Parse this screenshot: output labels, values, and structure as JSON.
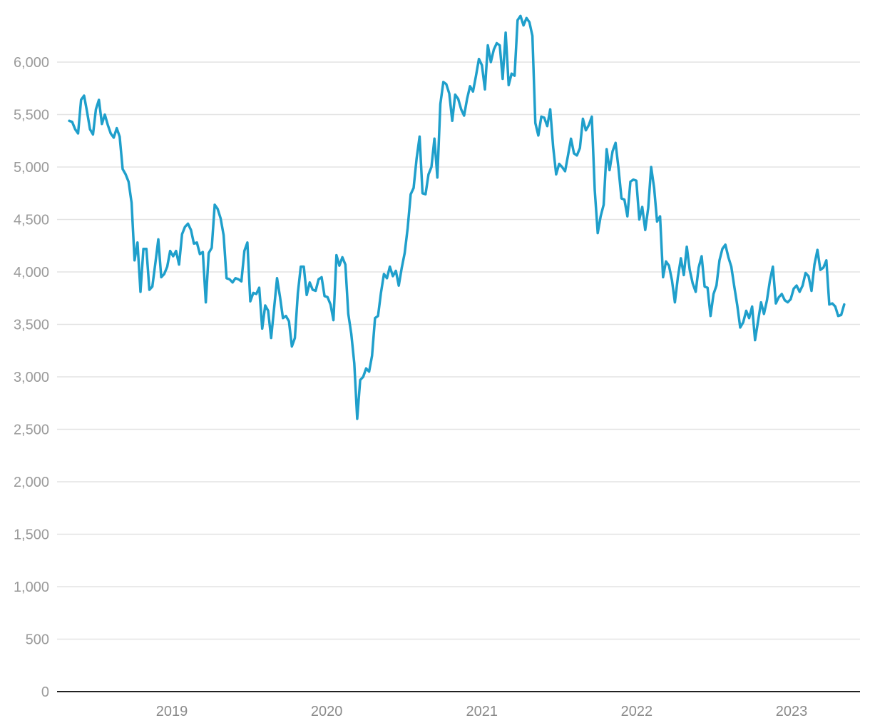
{
  "chart_data": {
    "type": "line",
    "title": "",
    "xlabel": "",
    "ylabel": "",
    "ylim": [
      0,
      6400
    ],
    "xlim": [
      "2018-05-01",
      "2023-05-31"
    ],
    "grid": "horizontal",
    "line_color": "#1f9fcb",
    "y_ticks": [
      {
        "value": 0,
        "label": "0"
      },
      {
        "value": 500,
        "label": "500"
      },
      {
        "value": 1000,
        "label": "1,000"
      },
      {
        "value": 1500,
        "label": "1,500"
      },
      {
        "value": 2000,
        "label": "2,000"
      },
      {
        "value": 2500,
        "label": "2,500"
      },
      {
        "value": 3000,
        "label": "3,000"
      },
      {
        "value": 3500,
        "label": "3,500"
      },
      {
        "value": 4000,
        "label": "4,000"
      },
      {
        "value": 4500,
        "label": "4,500"
      },
      {
        "value": 5000,
        "label": "5,000"
      },
      {
        "value": 5500,
        "label": "5,500"
      },
      {
        "value": 6000,
        "label": "6,000"
      }
    ],
    "x_ticks": [
      {
        "value": "2019-01-01",
        "label": "2019"
      },
      {
        "value": "2020-01-01",
        "label": "2020"
      },
      {
        "value": "2021-01-01",
        "label": "2021"
      },
      {
        "value": "2022-01-01",
        "label": "2022"
      },
      {
        "value": "2023-01-01",
        "label": "2023"
      }
    ],
    "series": [
      {
        "points": [
          [
            "2018-05-04",
            5440
          ],
          [
            "2018-05-11",
            5430
          ],
          [
            "2018-05-18",
            5360
          ],
          [
            "2018-05-25",
            5320
          ],
          [
            "2018-06-01",
            5640
          ],
          [
            "2018-06-08",
            5680
          ],
          [
            "2018-06-15",
            5530
          ],
          [
            "2018-06-22",
            5360
          ],
          [
            "2018-06-29",
            5310
          ],
          [
            "2018-07-06",
            5550
          ],
          [
            "2018-07-13",
            5640
          ],
          [
            "2018-07-20",
            5410
          ],
          [
            "2018-07-27",
            5500
          ],
          [
            "2018-08-03",
            5400
          ],
          [
            "2018-08-10",
            5320
          ],
          [
            "2018-08-17",
            5280
          ],
          [
            "2018-08-24",
            5370
          ],
          [
            "2018-08-31",
            5290
          ],
          [
            "2018-09-07",
            4980
          ],
          [
            "2018-09-14",
            4930
          ],
          [
            "2018-09-21",
            4860
          ],
          [
            "2018-09-28",
            4660
          ],
          [
            "2018-10-05",
            4110
          ],
          [
            "2018-10-12",
            4280
          ],
          [
            "2018-10-19",
            3810
          ],
          [
            "2018-10-26",
            4220
          ],
          [
            "2018-11-02",
            4220
          ],
          [
            "2018-11-09",
            3830
          ],
          [
            "2018-11-16",
            3860
          ],
          [
            "2018-11-23",
            4080
          ],
          [
            "2018-11-30",
            4310
          ],
          [
            "2018-12-07",
            3950
          ],
          [
            "2018-12-14",
            3980
          ],
          [
            "2018-12-21",
            4050
          ],
          [
            "2018-12-28",
            4200
          ],
          [
            "2019-01-04",
            4150
          ],
          [
            "2019-01-11",
            4200
          ],
          [
            "2019-01-18",
            4070
          ],
          [
            "2019-01-25",
            4360
          ],
          [
            "2019-02-01",
            4430
          ],
          [
            "2019-02-08",
            4460
          ],
          [
            "2019-02-15",
            4400
          ],
          [
            "2019-02-22",
            4270
          ],
          [
            "2019-03-01",
            4280
          ],
          [
            "2019-03-08",
            4170
          ],
          [
            "2019-03-15",
            4190
          ],
          [
            "2019-03-22",
            3710
          ],
          [
            "2019-03-29",
            4180
          ],
          [
            "2019-04-05",
            4230
          ],
          [
            "2019-04-12",
            4640
          ],
          [
            "2019-04-19",
            4600
          ],
          [
            "2019-04-26",
            4510
          ],
          [
            "2019-05-03",
            4350
          ],
          [
            "2019-05-10",
            3940
          ],
          [
            "2019-05-17",
            3930
          ],
          [
            "2019-05-24",
            3900
          ],
          [
            "2019-05-31",
            3940
          ],
          [
            "2019-06-07",
            3930
          ],
          [
            "2019-06-14",
            3910
          ],
          [
            "2019-06-21",
            4200
          ],
          [
            "2019-06-28",
            4280
          ],
          [
            "2019-07-05",
            3720
          ],
          [
            "2019-07-12",
            3800
          ],
          [
            "2019-07-19",
            3790
          ],
          [
            "2019-07-26",
            3850
          ],
          [
            "2019-08-02",
            3460
          ],
          [
            "2019-08-09",
            3680
          ],
          [
            "2019-08-16",
            3630
          ],
          [
            "2019-08-23",
            3370
          ],
          [
            "2019-08-30",
            3650
          ],
          [
            "2019-09-06",
            3940
          ],
          [
            "2019-09-13",
            3760
          ],
          [
            "2019-09-20",
            3560
          ],
          [
            "2019-09-27",
            3580
          ],
          [
            "2019-10-04",
            3530
          ],
          [
            "2019-10-11",
            3290
          ],
          [
            "2019-10-18",
            3370
          ],
          [
            "2019-10-25",
            3800
          ],
          [
            "2019-11-01",
            4050
          ],
          [
            "2019-11-08",
            4050
          ],
          [
            "2019-11-15",
            3780
          ],
          [
            "2019-11-22",
            3900
          ],
          [
            "2019-11-29",
            3830
          ],
          [
            "2019-12-06",
            3820
          ],
          [
            "2019-12-13",
            3930
          ],
          [
            "2019-12-20",
            3950
          ],
          [
            "2019-12-27",
            3770
          ],
          [
            "2020-01-03",
            3760
          ],
          [
            "2020-01-10",
            3690
          ],
          [
            "2020-01-17",
            3540
          ],
          [
            "2020-01-24",
            4160
          ],
          [
            "2020-01-31",
            4060
          ],
          [
            "2020-02-07",
            4140
          ],
          [
            "2020-02-14",
            4070
          ],
          [
            "2020-02-21",
            3600
          ],
          [
            "2020-02-28",
            3410
          ],
          [
            "2020-03-06",
            3130
          ],
          [
            "2020-03-13",
            2600
          ],
          [
            "2020-03-20",
            2970
          ],
          [
            "2020-03-27",
            3000
          ],
          [
            "2020-04-03",
            3080
          ],
          [
            "2020-04-10",
            3050
          ],
          [
            "2020-04-17",
            3200
          ],
          [
            "2020-04-24",
            3560
          ],
          [
            "2020-05-01",
            3580
          ],
          [
            "2020-05-08",
            3800
          ],
          [
            "2020-05-15",
            3980
          ],
          [
            "2020-05-22",
            3940
          ],
          [
            "2020-05-29",
            4050
          ],
          [
            "2020-06-05",
            3960
          ],
          [
            "2020-06-12",
            4010
          ],
          [
            "2020-06-19",
            3870
          ],
          [
            "2020-06-26",
            4040
          ],
          [
            "2020-07-03",
            4180
          ],
          [
            "2020-07-10",
            4420
          ],
          [
            "2020-07-17",
            4740
          ],
          [
            "2020-07-24",
            4800
          ],
          [
            "2020-07-31",
            5080
          ],
          [
            "2020-08-07",
            5290
          ],
          [
            "2020-08-14",
            4750
          ],
          [
            "2020-08-21",
            4740
          ],
          [
            "2020-08-28",
            4930
          ],
          [
            "2020-09-04",
            5000
          ],
          [
            "2020-09-11",
            5270
          ],
          [
            "2020-09-18",
            4900
          ],
          [
            "2020-09-25",
            5600
          ],
          [
            "2020-10-02",
            5810
          ],
          [
            "2020-10-09",
            5790
          ],
          [
            "2020-10-16",
            5700
          ],
          [
            "2020-10-23",
            5440
          ],
          [
            "2020-10-30",
            5690
          ],
          [
            "2020-11-06",
            5650
          ],
          [
            "2020-11-13",
            5550
          ],
          [
            "2020-11-20",
            5490
          ],
          [
            "2020-11-27",
            5650
          ],
          [
            "2020-12-04",
            5770
          ],
          [
            "2020-12-11",
            5720
          ],
          [
            "2020-12-18",
            5870
          ],
          [
            "2020-12-25",
            6030
          ],
          [
            "2021-01-01",
            5970
          ],
          [
            "2021-01-08",
            5740
          ],
          [
            "2021-01-15",
            6160
          ],
          [
            "2021-01-22",
            6000
          ],
          [
            "2021-01-29",
            6120
          ],
          [
            "2021-02-05",
            6180
          ],
          [
            "2021-02-12",
            6160
          ],
          [
            "2021-02-19",
            5840
          ],
          [
            "2021-02-26",
            6280
          ],
          [
            "2021-03-05",
            5780
          ],
          [
            "2021-03-12",
            5890
          ],
          [
            "2021-03-19",
            5870
          ],
          [
            "2021-03-26",
            6400
          ],
          [
            "2021-04-02",
            6440
          ],
          [
            "2021-04-09",
            6350
          ],
          [
            "2021-04-16",
            6420
          ],
          [
            "2021-04-23",
            6380
          ],
          [
            "2021-04-30",
            6250
          ],
          [
            "2021-05-07",
            5420
          ],
          [
            "2021-05-14",
            5300
          ],
          [
            "2021-05-21",
            5480
          ],
          [
            "2021-05-28",
            5470
          ],
          [
            "2021-06-04",
            5390
          ],
          [
            "2021-06-11",
            5550
          ],
          [
            "2021-06-18",
            5190
          ],
          [
            "2021-06-25",
            4930
          ],
          [
            "2021-07-02",
            5030
          ],
          [
            "2021-07-09",
            5000
          ],
          [
            "2021-07-16",
            4960
          ],
          [
            "2021-07-23",
            5110
          ],
          [
            "2021-07-30",
            5270
          ],
          [
            "2021-08-06",
            5130
          ],
          [
            "2021-08-13",
            5110
          ],
          [
            "2021-08-20",
            5180
          ],
          [
            "2021-08-27",
            5460
          ],
          [
            "2021-09-03",
            5350
          ],
          [
            "2021-09-10",
            5400
          ],
          [
            "2021-09-17",
            5480
          ],
          [
            "2021-09-24",
            4780
          ],
          [
            "2021-10-01",
            4370
          ],
          [
            "2021-10-08",
            4530
          ],
          [
            "2021-10-15",
            4640
          ],
          [
            "2021-10-22",
            5170
          ],
          [
            "2021-10-29",
            4970
          ],
          [
            "2021-11-05",
            5150
          ],
          [
            "2021-11-12",
            5230
          ],
          [
            "2021-11-19",
            4990
          ],
          [
            "2021-11-26",
            4700
          ],
          [
            "2021-12-03",
            4690
          ],
          [
            "2021-12-10",
            4530
          ],
          [
            "2021-12-17",
            4860
          ],
          [
            "2021-12-24",
            4880
          ],
          [
            "2021-12-31",
            4870
          ],
          [
            "2022-01-07",
            4500
          ],
          [
            "2022-01-14",
            4620
          ],
          [
            "2022-01-21",
            4400
          ],
          [
            "2022-01-28",
            4610
          ],
          [
            "2022-02-04",
            5000
          ],
          [
            "2022-02-11",
            4800
          ],
          [
            "2022-02-18",
            4480
          ],
          [
            "2022-02-25",
            4530
          ],
          [
            "2022-03-04",
            3950
          ],
          [
            "2022-03-11",
            4100
          ],
          [
            "2022-03-18",
            4060
          ],
          [
            "2022-03-25",
            3920
          ],
          [
            "2022-04-01",
            3710
          ],
          [
            "2022-04-08",
            3950
          ],
          [
            "2022-04-15",
            4130
          ],
          [
            "2022-04-22",
            3970
          ],
          [
            "2022-04-29",
            4240
          ],
          [
            "2022-05-06",
            4020
          ],
          [
            "2022-05-13",
            3890
          ],
          [
            "2022-05-20",
            3810
          ],
          [
            "2022-05-27",
            4040
          ],
          [
            "2022-06-03",
            4150
          ],
          [
            "2022-06-10",
            3860
          ],
          [
            "2022-06-17",
            3850
          ],
          [
            "2022-06-24",
            3580
          ],
          [
            "2022-07-01",
            3790
          ],
          [
            "2022-07-08",
            3870
          ],
          [
            "2022-07-15",
            4110
          ],
          [
            "2022-07-22",
            4220
          ],
          [
            "2022-07-29",
            4260
          ],
          [
            "2022-08-05",
            4140
          ],
          [
            "2022-08-12",
            4050
          ],
          [
            "2022-08-19",
            3860
          ],
          [
            "2022-08-26",
            3680
          ],
          [
            "2022-09-02",
            3470
          ],
          [
            "2022-09-09",
            3520
          ],
          [
            "2022-09-16",
            3630
          ],
          [
            "2022-09-23",
            3560
          ],
          [
            "2022-09-30",
            3670
          ],
          [
            "2022-10-07",
            3350
          ],
          [
            "2022-10-14",
            3530
          ],
          [
            "2022-10-21",
            3710
          ],
          [
            "2022-10-28",
            3600
          ],
          [
            "2022-11-04",
            3730
          ],
          [
            "2022-11-11",
            3920
          ],
          [
            "2022-11-18",
            4050
          ],
          [
            "2022-11-25",
            3700
          ],
          [
            "2022-12-02",
            3760
          ],
          [
            "2022-12-09",
            3790
          ],
          [
            "2022-12-16",
            3730
          ],
          [
            "2022-12-23",
            3710
          ],
          [
            "2022-12-30",
            3740
          ],
          [
            "2023-01-06",
            3840
          ],
          [
            "2023-01-13",
            3870
          ],
          [
            "2023-01-20",
            3810
          ],
          [
            "2023-01-27",
            3870
          ],
          [
            "2023-02-03",
            3990
          ],
          [
            "2023-02-10",
            3960
          ],
          [
            "2023-02-17",
            3820
          ],
          [
            "2023-02-24",
            4070
          ],
          [
            "2023-03-03",
            4210
          ],
          [
            "2023-03-10",
            4020
          ],
          [
            "2023-03-17",
            4040
          ],
          [
            "2023-03-24",
            4110
          ],
          [
            "2023-03-31",
            3690
          ],
          [
            "2023-04-07",
            3700
          ],
          [
            "2023-04-14",
            3670
          ],
          [
            "2023-04-21",
            3580
          ],
          [
            "2023-04-28",
            3590
          ],
          [
            "2023-05-05",
            3690
          ]
        ]
      }
    ]
  }
}
